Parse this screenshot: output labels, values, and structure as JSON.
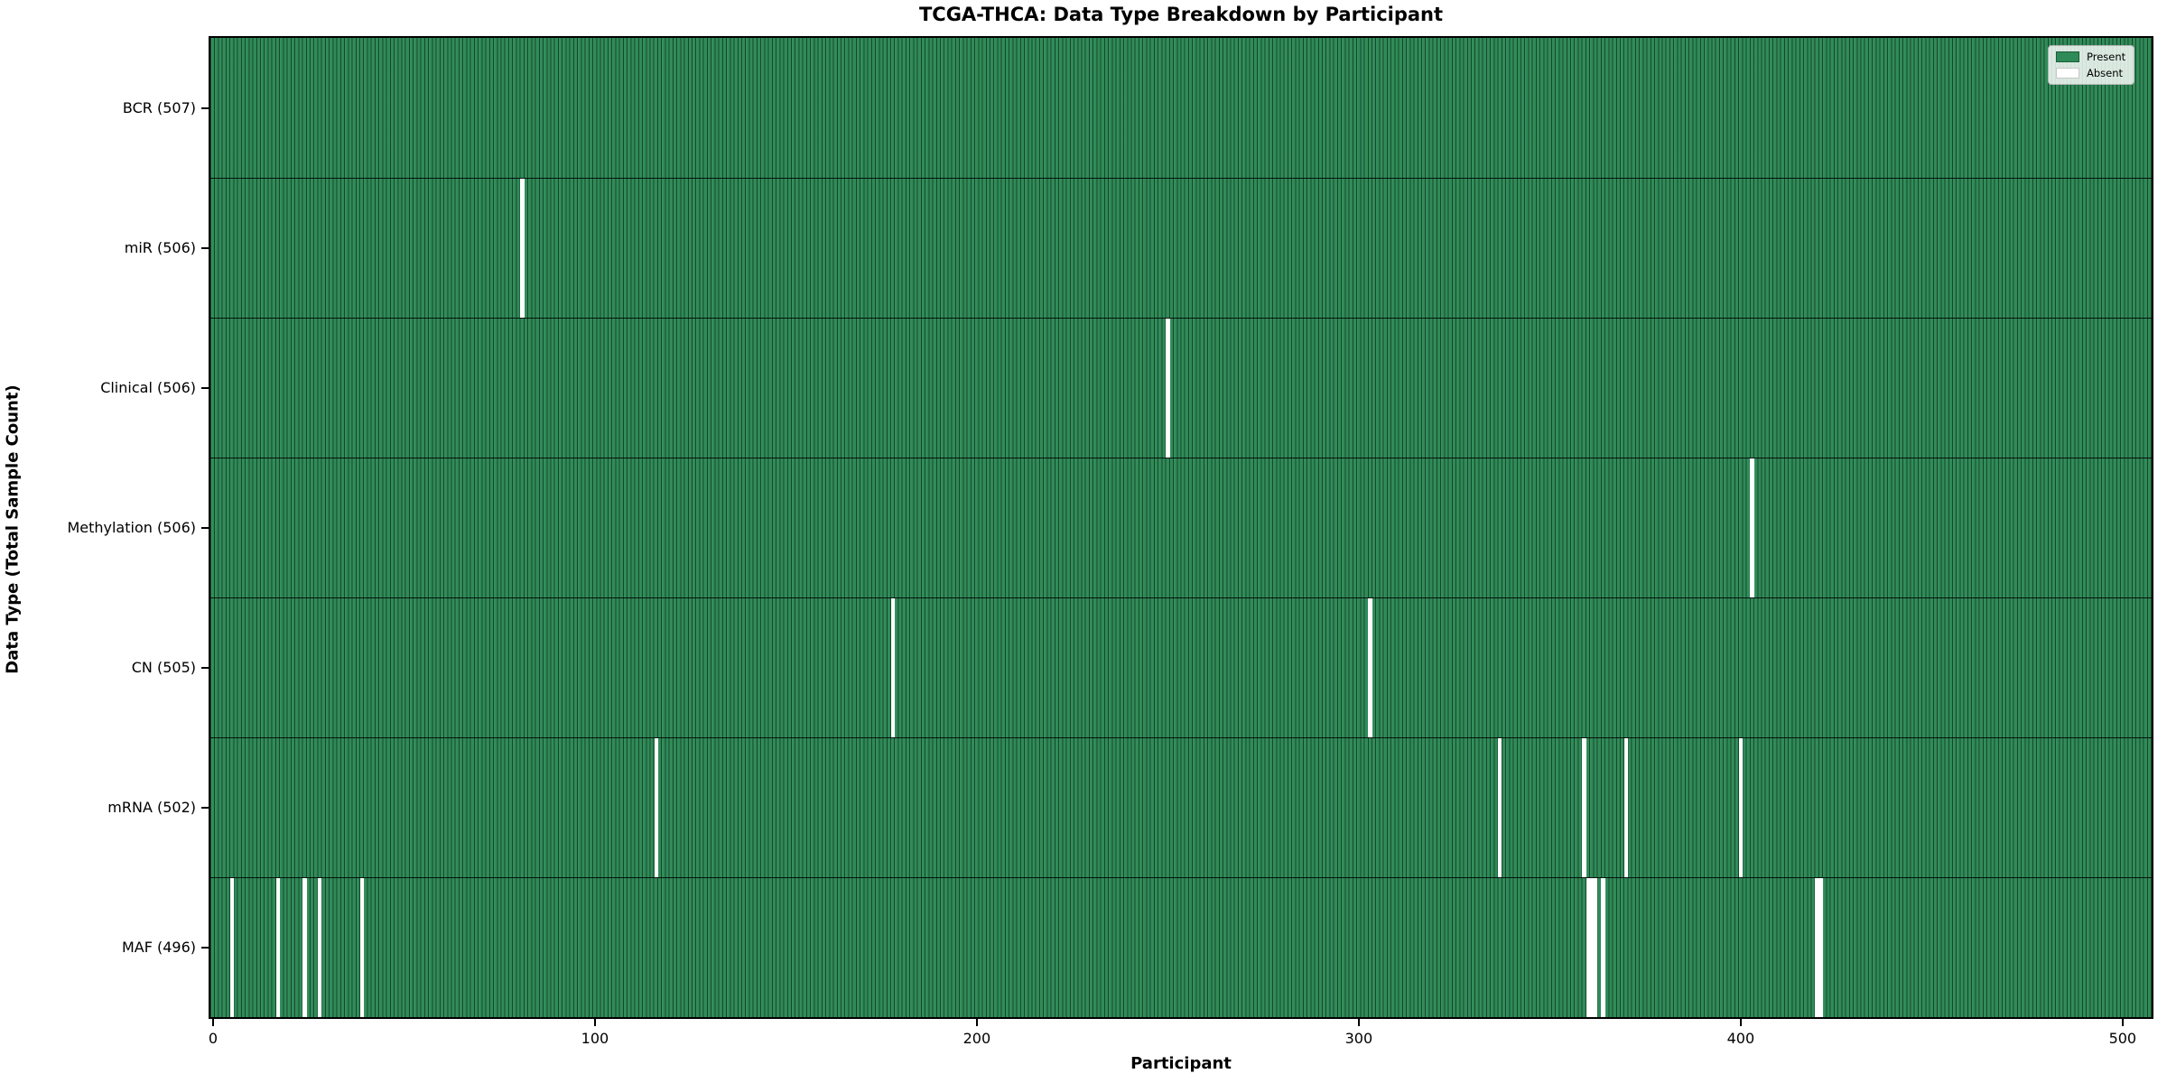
{
  "chart_data": {
    "type": "heatmap",
    "title": "TCGA-THCA: Data Type Breakdown by Participant",
    "xlabel": "Participant",
    "ylabel": "Data Type (Total Sample Count)",
    "n_participants": 507,
    "xlim": [
      -0.7,
      507.6
    ],
    "x_ticks": [
      0,
      100,
      200,
      300,
      400,
      500
    ],
    "grid": false,
    "legend_position": "upper right",
    "legend": [
      {
        "label": "Present",
        "color": "#2e8b57"
      },
      {
        "label": "Absent",
        "color": "#ffffff"
      }
    ],
    "colors": {
      "present": "#2e8b57",
      "absent": "#ffffff",
      "bar_edge": "rgba(0,0,0,0.5)",
      "frame": "#000000"
    },
    "rows": [
      {
        "label": "BCR (507)",
        "name": "BCR",
        "present_count": 507,
        "absent_participants": []
      },
      {
        "label": "miR (506)",
        "name": "miR",
        "present_count": 506,
        "absent_participants": [
          81
        ]
      },
      {
        "label": "Clinical (506)",
        "name": "Clinical",
        "present_count": 506,
        "absent_participants": [
          250
        ]
      },
      {
        "label": "Methylation (506)",
        "name": "Methylation",
        "present_count": 506,
        "absent_participants": [
          403
        ]
      },
      {
        "label": "CN (505)",
        "name": "CN",
        "present_count": 505,
        "absent_participants": [
          178,
          303
        ]
      },
      {
        "label": "mRNA (502)",
        "name": "mRNA",
        "present_count": 502,
        "absent_participants": [
          116,
          337,
          359,
          370,
          400
        ]
      },
      {
        "label": "MAF (496)",
        "name": "MAF",
        "present_count": 496,
        "absent_participants": [
          5,
          17,
          24,
          28,
          39,
          360,
          361,
          362,
          364,
          420,
          421
        ]
      }
    ]
  }
}
